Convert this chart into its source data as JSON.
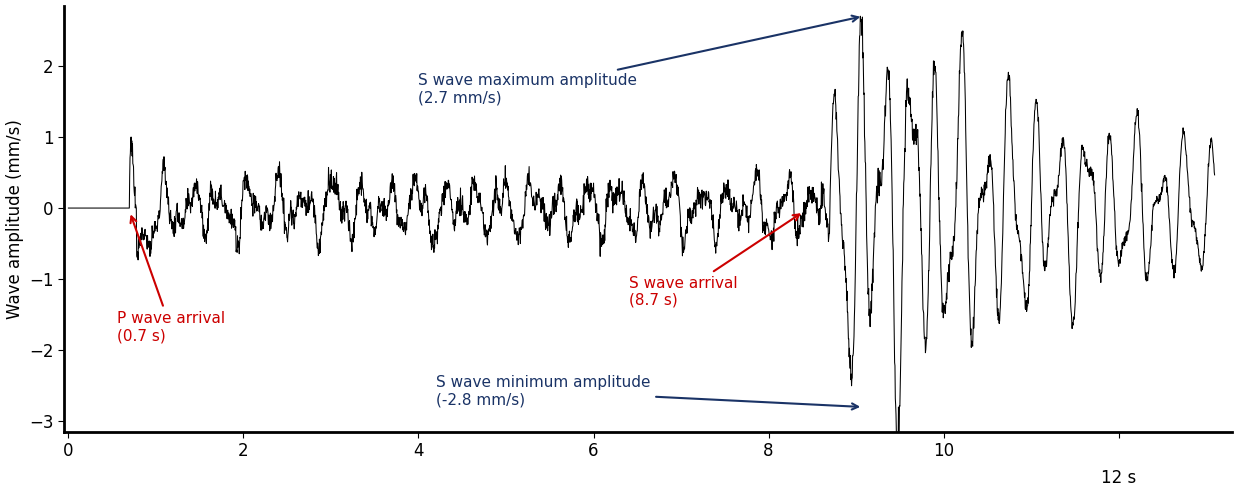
{
  "ylabel": "Wave amplitude (mm/s)",
  "ylim": [
    -3.15,
    2.85
  ],
  "xlim": [
    -0.05,
    13.3
  ],
  "yticks": [
    -3,
    -2,
    -1,
    0,
    1,
    2
  ],
  "xticks": [
    0,
    2,
    4,
    6,
    8,
    10,
    12
  ],
  "p_wave_time": 0.7,
  "s_wave_time": 8.7,
  "p_wave_label": "P wave arrival\n(0.7 s)",
  "s_wave_arrival_label": "S wave arrival\n(8.7 s)",
  "s_wave_max_label": "S wave maximum amplitude\n(2.7 mm/s)",
  "s_wave_min_label": "S wave minimum amplitude\n(-2.8 mm/s)",
  "annotation_color_red": "#cc0000",
  "annotation_color_blue": "#1a3366",
  "line_color": "#000000",
  "background_color": "#ffffff",
  "label_fontsize": 12,
  "tick_fontsize": 12,
  "annot_fontsize": 11
}
